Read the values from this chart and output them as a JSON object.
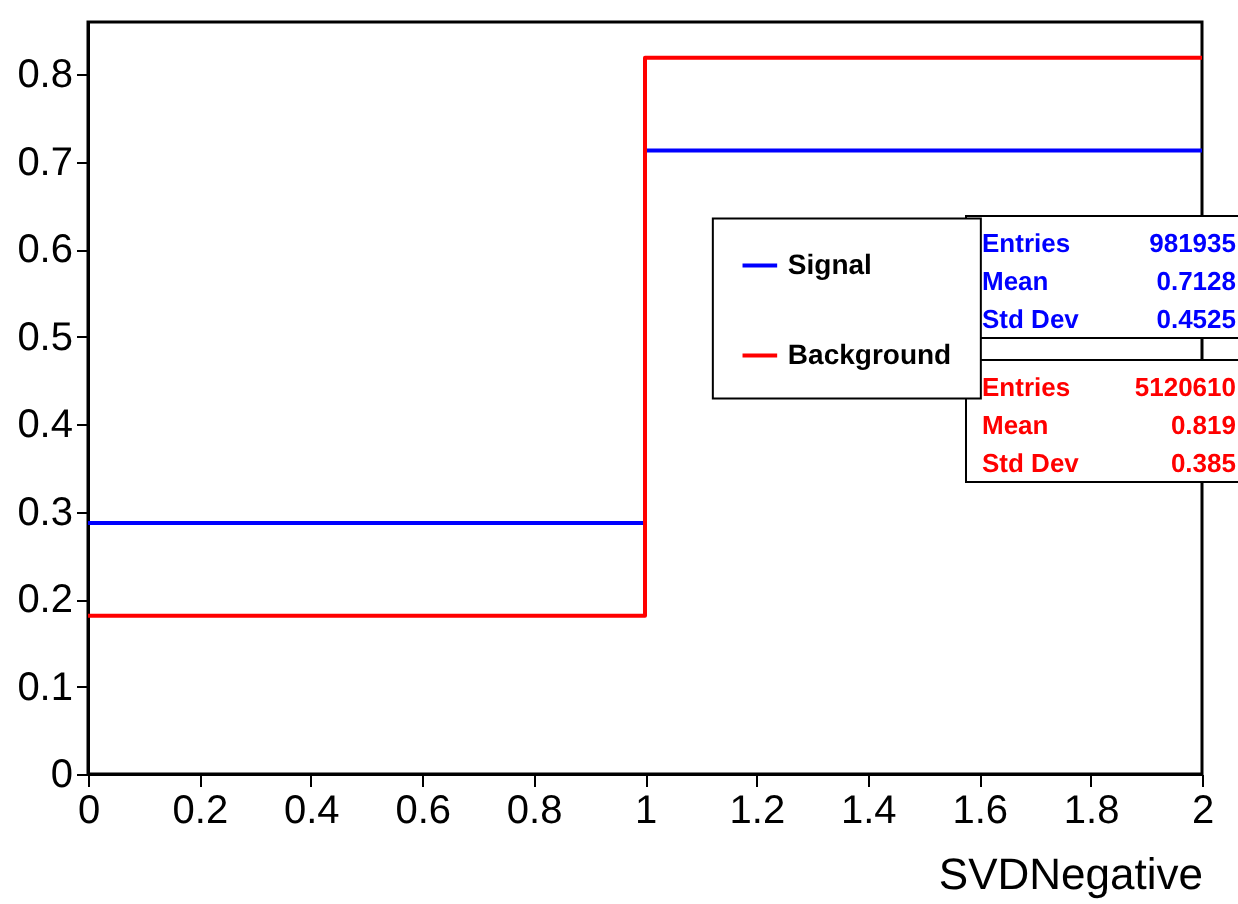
{
  "chart_data": {
    "type": "histogram",
    "xlabel": "SVDNegative",
    "bins": [
      0,
      1,
      2
    ],
    "series": [
      {
        "name": "Signal",
        "color": "#0000ff",
        "values": [
          0.287,
          0.713
        ]
      },
      {
        "name": "Background",
        "color": "#ff0000",
        "values": [
          0.181,
          0.819
        ]
      }
    ],
    "xlim": [
      0,
      2
    ],
    "xticks": [
      0,
      0.2,
      0.4,
      0.6,
      0.8,
      1,
      1.2,
      1.4,
      1.6,
      1.8,
      2
    ],
    "ylim": [
      0,
      0.86
    ],
    "yticks": [
      0,
      0.1,
      0.2,
      0.3,
      0.4,
      0.5,
      0.6,
      0.7,
      0.8
    ],
    "legend": "right",
    "grid": false,
    "annotations": [
      "Entries 981935",
      "Mean 0.7128",
      "Std Dev 0.4525",
      "Entries 5120610",
      "Mean 0.819",
      "Std Dev 0.385"
    ]
  }
}
